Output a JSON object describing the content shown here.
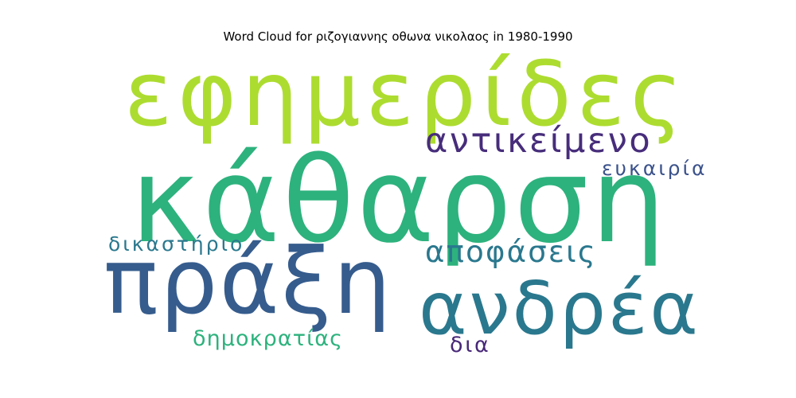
{
  "chart_data": {
    "type": "wordcloud",
    "title": "Word Cloud for ριζογιαννης οθωνα νικολαος in 1980-1990",
    "words": [
      {
        "key": "efimerides",
        "text": "εφημερίδες",
        "weight": 0.76,
        "color": "#addc30"
      },
      {
        "key": "katharsi",
        "text": "κάθαρση",
        "weight": 1.0,
        "color": "#2db27d"
      },
      {
        "key": "praxi",
        "text": "πράξη",
        "weight": 0.77,
        "color": "#365c8d"
      },
      {
        "key": "andrea",
        "text": "ανδρέα",
        "weight": 0.62,
        "color": "#2a788e"
      },
      {
        "key": "antikeimeno",
        "text": "αντικείμενο",
        "weight": 0.29,
        "color": "#472d7b"
      },
      {
        "key": "apofaseis",
        "text": "αποφάσεις",
        "weight": 0.25,
        "color": "#2a788e"
      },
      {
        "key": "eukairia",
        "text": "ευκαιρία",
        "weight": 0.17,
        "color": "#3b528b"
      },
      {
        "key": "dikastirio",
        "text": "δικαστήριο",
        "weight": 0.17,
        "color": "#2a788e"
      },
      {
        "key": "dimokratias",
        "text": "δημοκρατίας",
        "weight": 0.18,
        "color": "#2db27d"
      },
      {
        "key": "dia",
        "text": "δια",
        "weight": 0.18,
        "color": "#482878"
      }
    ]
  }
}
